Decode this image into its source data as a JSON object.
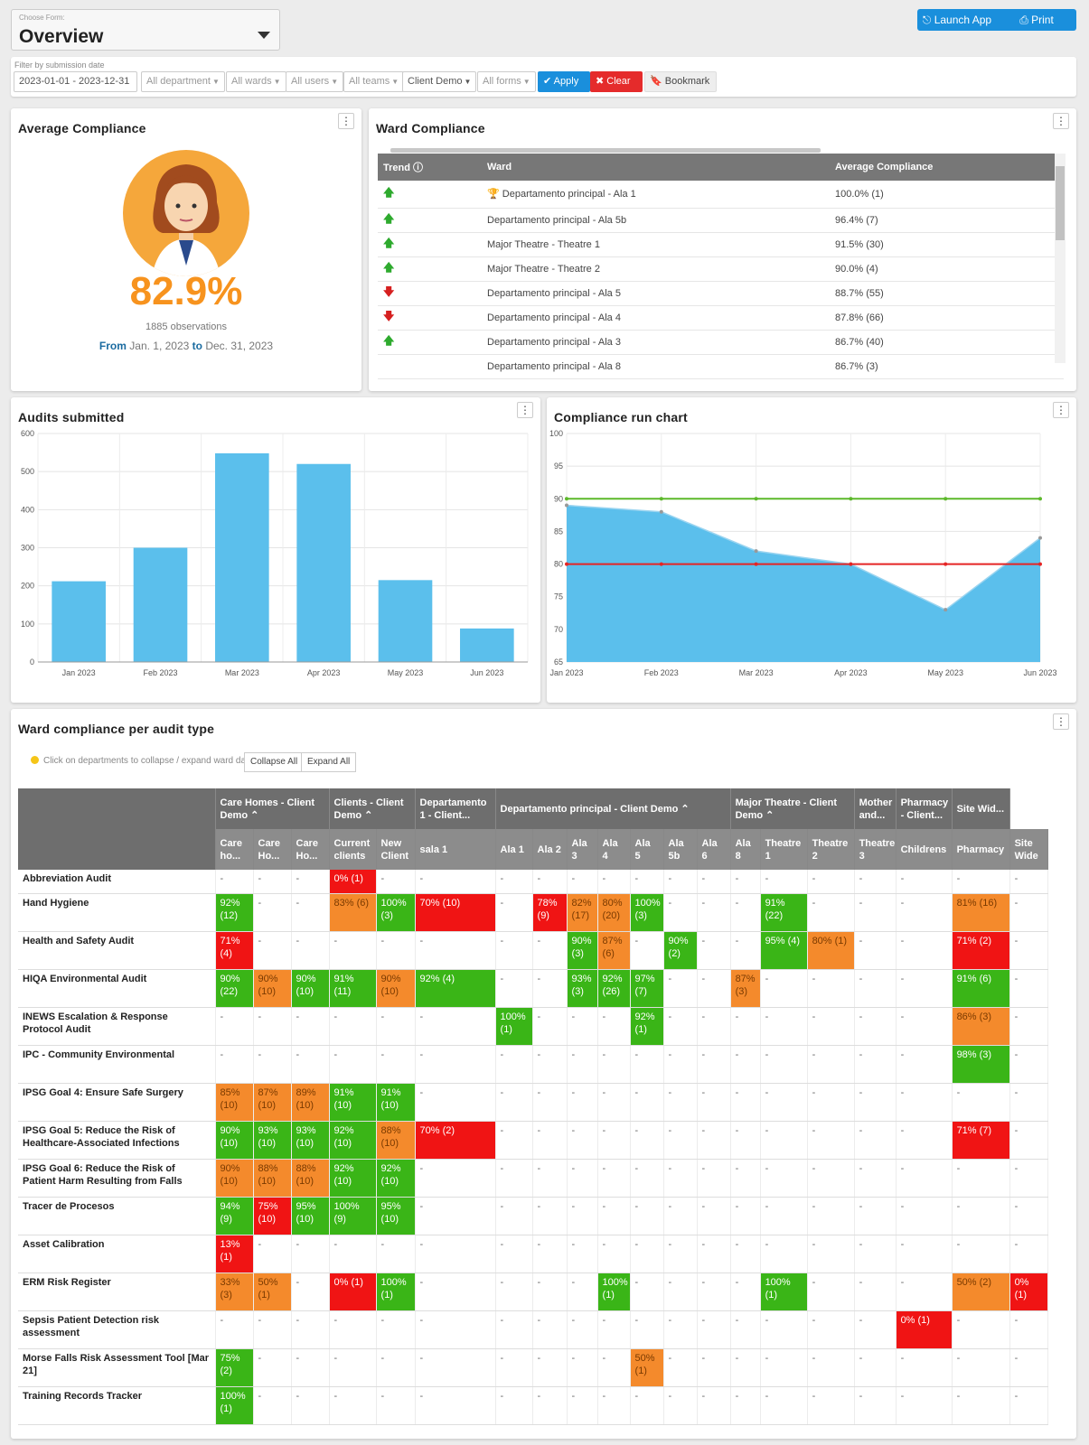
{
  "form": {
    "label": "Choose Form:",
    "value": "Overview"
  },
  "actions": {
    "launch": "Launch App",
    "print": "Print"
  },
  "filters": {
    "label": "Filter by submission date",
    "date": "2023-01-01 - 2023-12-31",
    "department": "All department",
    "wards": "All wards",
    "users": "All users",
    "teams": "All teams",
    "client": "Client Demo",
    "forms": "All forms",
    "apply": "Apply",
    "clear": "Clear",
    "bookmark": "Bookmark"
  },
  "avg": {
    "title": "Average Compliance",
    "value": "82.9%",
    "observations": "1885 observations",
    "from_label": "From",
    "from": "Jan. 1, 2023",
    "to_label": "to",
    "to": "Dec. 31, 2023"
  },
  "ward_compliance": {
    "title": "Ward Compliance",
    "headers": [
      "Trend",
      "Ward",
      "Average Compliance"
    ],
    "rows": [
      {
        "trend": "up",
        "ward": "Departamento principal - Ala 1",
        "value": "100.0% (1)",
        "trophy": true
      },
      {
        "trend": "up",
        "ward": "Departamento principal - Ala 5b",
        "value": "96.4% (7)"
      },
      {
        "trend": "up",
        "ward": "Major Theatre - Theatre 1",
        "value": "91.5% (30)"
      },
      {
        "trend": "up",
        "ward": "Major Theatre - Theatre 2",
        "value": "90.0% (4)"
      },
      {
        "trend": "down",
        "ward": "Departamento principal - Ala 5",
        "value": "88.7% (55)"
      },
      {
        "trend": "down",
        "ward": "Departamento principal - Ala 4",
        "value": "87.8% (66)"
      },
      {
        "trend": "up",
        "ward": "Departamento principal - Ala 3",
        "value": "86.7% (40)"
      },
      {
        "trend": "",
        "ward": "Departamento principal - Ala 8",
        "value": "86.7% (3)"
      }
    ]
  },
  "audits_chart": {
    "title": "Audits submitted"
  },
  "run_chart": {
    "title": "Compliance run chart"
  },
  "chart_data": [
    {
      "type": "bar",
      "title": "Audits submitted",
      "categories": [
        "Jan 2023",
        "Feb 2023",
        "Mar 2023",
        "Apr 2023",
        "May 2023",
        "Jun 2023"
      ],
      "values": [
        212,
        300,
        548,
        520,
        215,
        88
      ],
      "ylim": [
        0,
        600
      ],
      "yticks": [
        0,
        100,
        200,
        300,
        400,
        500,
        600
      ],
      "color": "#5bbfec"
    },
    {
      "type": "area",
      "title": "Compliance run chart",
      "categories": [
        "Jan 2023",
        "Feb 2023",
        "Mar 2023",
        "Apr 2023",
        "May 2023",
        "Jun 2023"
      ],
      "values": [
        89,
        88,
        82,
        80,
        73,
        84
      ],
      "ylim": [
        65,
        100
      ],
      "yticks": [
        65,
        70,
        75,
        80,
        85,
        90,
        95,
        100
      ],
      "target_green": 90,
      "target_red": 80,
      "color": "#5bbfec"
    }
  ],
  "ward_audit": {
    "title": "Ward compliance per audit type",
    "hint": "Click on departments to collapse / expand ward data",
    "collapse": "Collapse All",
    "expand": "Expand All",
    "groups": [
      {
        "label": "Care Homes - Client Demo ⌃",
        "span": 3
      },
      {
        "label": "Clients - Client Demo ⌃",
        "span": 2
      },
      {
        "label": "Departamento 1 - Client...",
        "span": 1
      },
      {
        "label": "Departamento principal - Client Demo ⌃",
        "span": 7
      },
      {
        "label": "Major Theatre - Client Demo ⌃",
        "span": 3
      },
      {
        "label": "Mother and...",
        "span": 1
      },
      {
        "label": "Pharmacy - Client...",
        "span": 1
      },
      {
        "label": "Site Wid...",
        "span": 1
      }
    ],
    "columns": [
      "Care ho...",
      "Care Ho...",
      "Care Ho...",
      "Current clients",
      "New Client",
      "sala 1",
      "Ala 1",
      "Ala 2",
      "Ala 3",
      "Ala 4",
      "Ala 5",
      "Ala 5b",
      "Ala 6",
      "Ala 8",
      "Theatre 1",
      "Theatre 2",
      "Theatre 3",
      "Childrens",
      "Pharmacy",
      "Site Wide"
    ],
    "rows": [
      {
        "label": "Abbreviation Audit",
        "cells": [
          "-",
          "-",
          "-",
          "r:0% (1)",
          "-",
          "-",
          "-",
          "-",
          "-",
          "-",
          "-",
          "-",
          "-",
          "-",
          "-",
          "-",
          "-",
          "-",
          "-",
          "-"
        ]
      },
      {
        "label": "Hand Hygiene",
        "cells": [
          "g:92% (12)",
          "-",
          "-",
          "o:83% (6)",
          "g:100% (3)",
          "r:70% (10)",
          "-",
          "r:78% (9)",
          "o:82% (17)",
          "o:80% (20)",
          "g:100% (3)",
          "-",
          "-",
          "-",
          "g:91% (22)",
          "-",
          "-",
          "-",
          "o:81% (16)",
          "-"
        ]
      },
      {
        "label": "Health and Safety Audit",
        "cells": [
          "r:71% (4)",
          "-",
          "-",
          "-",
          "-",
          "-",
          "-",
          "-",
          "g:90% (3)",
          "o:87% (6)",
          "-",
          "g:90% (2)",
          "-",
          "-",
          "g:95% (4)",
          "o:80% (1)",
          "-",
          "-",
          "r:71% (2)",
          "-"
        ]
      },
      {
        "label": "HIQA Environmental Audit",
        "cells": [
          "g:90% (22)",
          "o:90% (10)",
          "g:90% (10)",
          "g:91% (11)",
          "o:90% (10)",
          "g:92% (4)",
          "-",
          "-",
          "g:93% (3)",
          "g:92% (26)",
          "g:97% (7)",
          "-",
          "-",
          "o:87% (3)",
          "-",
          "-",
          "-",
          "-",
          "g:91% (6)",
          "-"
        ]
      },
      {
        "label": "INEWS Escalation & Response Protocol Audit",
        "cells": [
          "-",
          "-",
          "-",
          "-",
          "-",
          "-",
          "g:100% (1)",
          "-",
          "-",
          "-",
          "g:92% (1)",
          "-",
          "-",
          "-",
          "-",
          "-",
          "-",
          "-",
          "o:86% (3)",
          "-"
        ]
      },
      {
        "label": "IPC - Community Environmental",
        "cells": [
          "-",
          "-",
          "-",
          "-",
          "-",
          "-",
          "-",
          "-",
          "-",
          "-",
          "-",
          "-",
          "-",
          "-",
          "-",
          "-",
          "-",
          "-",
          "g:98% (3)",
          "-"
        ]
      },
      {
        "label": "IPSG Goal 4: Ensure Safe Surgery",
        "cells": [
          "o:85% (10)",
          "o:87% (10)",
          "o:89% (10)",
          "g:91% (10)",
          "g:91% (10)",
          "-",
          "-",
          "-",
          "-",
          "-",
          "-",
          "-",
          "-",
          "-",
          "-",
          "-",
          "-",
          "-",
          "-",
          "-"
        ]
      },
      {
        "label": "IPSG Goal 5: Reduce the Risk of Healthcare-Associated Infections",
        "cells": [
          "g:90% (10)",
          "g:93% (10)",
          "g:93% (10)",
          "g:92% (10)",
          "o:88% (10)",
          "r:70% (2)",
          "-",
          "-",
          "-",
          "-",
          "-",
          "-",
          "-",
          "-",
          "-",
          "-",
          "-",
          "-",
          "r:71% (7)",
          "-"
        ]
      },
      {
        "label": "IPSG Goal 6: Reduce the Risk of Patient Harm Resulting from Falls",
        "cells": [
          "o:90% (10)",
          "o:88% (10)",
          "o:88% (10)",
          "g:92% (10)",
          "g:92% (10)",
          "-",
          "-",
          "-",
          "-",
          "-",
          "-",
          "-",
          "-",
          "-",
          "-",
          "-",
          "-",
          "-",
          "-",
          "-"
        ]
      },
      {
        "label": "Tracer de Procesos",
        "cells": [
          "g:94% (9)",
          "r:75% (10)",
          "g:95% (10)",
          "g:100% (9)",
          "g:95% (10)",
          "-",
          "-",
          "-",
          "-",
          "-",
          "-",
          "-",
          "-",
          "-",
          "-",
          "-",
          "-",
          "-",
          "-",
          "-"
        ]
      },
      {
        "label": "Asset Calibration",
        "cells": [
          "r:13% (1)",
          "-",
          "-",
          "-",
          "-",
          "-",
          "-",
          "-",
          "-",
          "-",
          "-",
          "-",
          "-",
          "-",
          "-",
          "-",
          "-",
          "-",
          "-",
          "-"
        ]
      },
      {
        "label": "ERM Risk Register",
        "cells": [
          "o:33% (3)",
          "o:50% (1)",
          "-",
          "r:0% (1)",
          "g:100% (1)",
          "-",
          "-",
          "-",
          "-",
          "g:100% (1)",
          "-",
          "-",
          "-",
          "-",
          "g:100% (1)",
          "-",
          "-",
          "-",
          "o:50% (2)",
          "r:0% (1)"
        ]
      },
      {
        "label": "Sepsis Patient Detection risk assessment",
        "cells": [
          "-",
          "-",
          "-",
          "-",
          "-",
          "-",
          "-",
          "-",
          "-",
          "-",
          "-",
          "-",
          "-",
          "-",
          "-",
          "-",
          "-",
          "r:0% (1)",
          "-",
          "-"
        ]
      },
      {
        "label": "Morse Falls Risk Assessment Tool [Mar 21]",
        "cells": [
          "g:75% (2)",
          "-",
          "-",
          "-",
          "-",
          "-",
          "-",
          "-",
          "-",
          "-",
          "o:50% (1)",
          "-",
          "-",
          "-",
          "-",
          "-",
          "-",
          "-",
          "-",
          "-"
        ]
      },
      {
        "label": "Training Records Tracker",
        "cells": [
          "g:100% (1)",
          "-",
          "-",
          "-",
          "-",
          "-",
          "-",
          "-",
          "-",
          "-",
          "-",
          "-",
          "-",
          "-",
          "-",
          "-",
          "-",
          "-",
          "-",
          "-"
        ]
      }
    ]
  }
}
